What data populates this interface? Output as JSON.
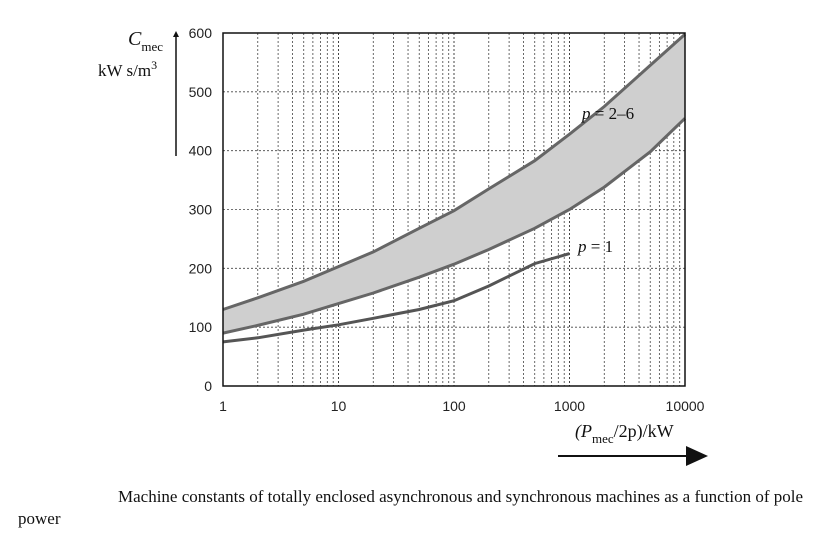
{
  "chart_data": {
    "type": "area",
    "x_scale": "log",
    "xlim": [
      1,
      10000
    ],
    "ylim": [
      0,
      600
    ],
    "x_ticks": [
      {
        "value": 1,
        "label": "1"
      },
      {
        "value": 10,
        "label": "10"
      },
      {
        "value": 100,
        "label": "100"
      },
      {
        "value": 1000,
        "label": "1000"
      },
      {
        "value": 10000,
        "label": "10000"
      }
    ],
    "y_ticks": [
      {
        "value": 0,
        "label": "0"
      },
      {
        "value": 100,
        "label": "100"
      },
      {
        "value": 200,
        "label": "200"
      },
      {
        "value": 300,
        "label": "300"
      },
      {
        "value": 400,
        "label": "400"
      },
      {
        "value": 500,
        "label": "500"
      },
      {
        "value": 600,
        "label": "600"
      }
    ],
    "ylabel_symbol": "C",
    "ylabel_sub": "mec",
    "ylabel_unit": "kW s/m",
    "ylabel_unit_sup": "3",
    "xlabel_pre": "(P",
    "xlabel_sub": "mec",
    "xlabel_post": "/2p)/kW",
    "grid": true,
    "band": {
      "label_var": "p",
      "label_value": " = 2–6",
      "x": [
        1,
        2,
        5,
        10,
        20,
        50,
        100,
        200,
        500,
        1000,
        2000,
        5000,
        10000
      ],
      "upper": [
        130,
        150,
        178,
        203,
        228,
        268,
        298,
        335,
        383,
        428,
        475,
        545,
        598
      ],
      "lower": [
        90,
        103,
        122,
        140,
        158,
        185,
        207,
        232,
        268,
        300,
        338,
        398,
        455
      ]
    },
    "series": [
      {
        "label_var": "p",
        "label_value": " = 1",
        "x": [
          1,
          2,
          5,
          10,
          20,
          50,
          100,
          200,
          500,
          1000
        ],
        "values": [
          75,
          82,
          95,
          104,
          115,
          130,
          145,
          170,
          208,
          225
        ]
      }
    ],
    "caption": "Machine constants of totally enclosed asynchronous and synchronous machines as a function of pole power"
  }
}
